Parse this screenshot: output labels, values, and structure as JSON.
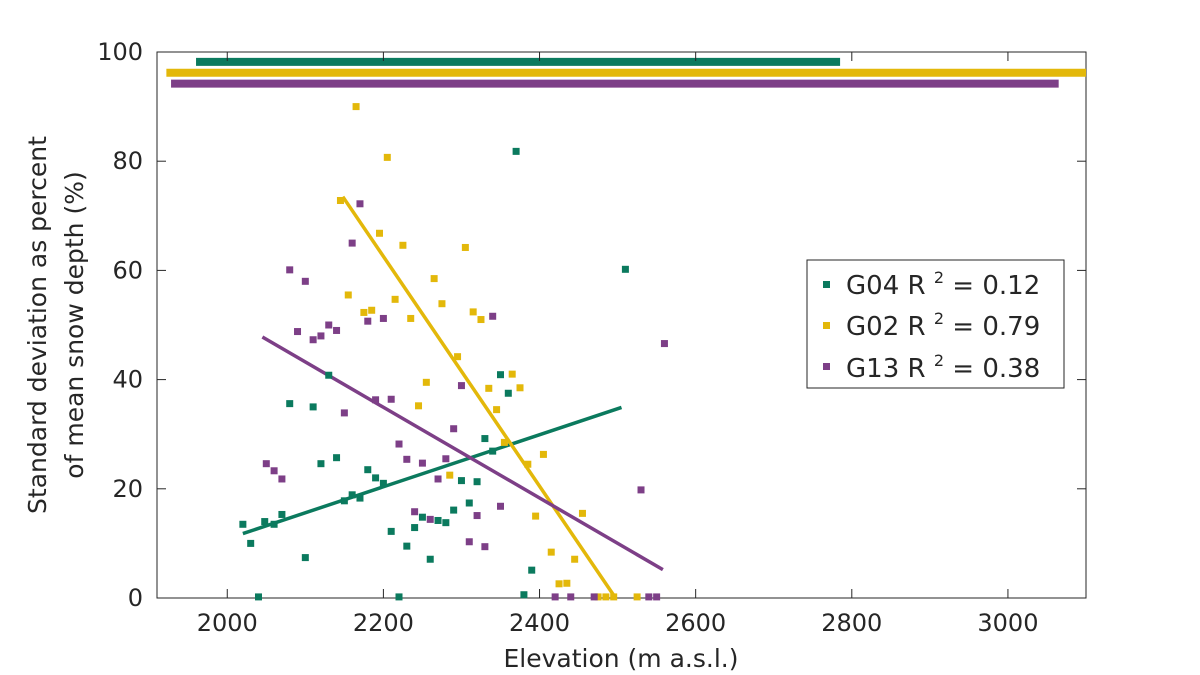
{
  "chart_data": {
    "type": "scatter",
    "title": "",
    "xlabel": "Elevation (m a.s.l.)",
    "ylabel_line1": "Standard deviation as percent",
    "ylabel_line2": "of mean snow depth (%)",
    "xlim": [
      1910,
      3100
    ],
    "ylim": [
      0,
      100
    ],
    "xticks": [
      2000,
      2200,
      2400,
      2600,
      2800,
      3000
    ],
    "yticks": [
      0,
      20,
      40,
      60,
      80,
      100
    ],
    "xtick_labels": [
      "2000",
      "2200",
      "2400",
      "2600",
      "2800",
      "3000"
    ],
    "ytick_labels": [
      "0",
      "20",
      "40",
      "60",
      "80",
      "100"
    ],
    "grid": false,
    "legend_position": "right",
    "series": [
      {
        "name": "G04",
        "r2_label": "R",
        "r2_sup": "2",
        "r2_value": " = 0.12",
        "color": "#0b7a5e",
        "points": [
          [
            2020,
            13.5
          ],
          [
            2030,
            10
          ],
          [
            2040,
            0.2
          ],
          [
            2048,
            14
          ],
          [
            2060,
            13.5
          ],
          [
            2070,
            15.3
          ],
          [
            2080,
            35.6
          ],
          [
            2100,
            7.4
          ],
          [
            2110,
            35
          ],
          [
            2120,
            24.6
          ],
          [
            2130,
            40.8
          ],
          [
            2140,
            25.7
          ],
          [
            2150,
            17.8
          ],
          [
            2160,
            18.9
          ],
          [
            2170,
            18.3
          ],
          [
            2180,
            23.5
          ],
          [
            2190,
            22
          ],
          [
            2200,
            21
          ],
          [
            2210,
            12.2
          ],
          [
            2220,
            0.2
          ],
          [
            2230,
            9.5
          ],
          [
            2240,
            12.9
          ],
          [
            2250,
            14.8
          ],
          [
            2260,
            7.1
          ],
          [
            2270,
            14.2
          ],
          [
            2280,
            13.8
          ],
          [
            2290,
            16.1
          ],
          [
            2300,
            21.5
          ],
          [
            2310,
            17.4
          ],
          [
            2320,
            21.3
          ],
          [
            2330,
            29.2
          ],
          [
            2340,
            26.9
          ],
          [
            2350,
            40.9
          ],
          [
            2360,
            37.5
          ],
          [
            2370,
            81.8
          ],
          [
            2380,
            0.6
          ],
          [
            2390,
            5.1
          ],
          [
            2510,
            60.2
          ]
        ],
        "fit": [
          [
            2020,
            11.8
          ],
          [
            2505,
            34.9
          ]
        ],
        "range": [
          1960,
          2785
        ],
        "range_y": 98.2
      },
      {
        "name": "G02",
        "r2_label": "R",
        "r2_sup": "2",
        "r2_value": " = 0.79",
        "color": "#e3b80a",
        "points": [
          [
            2145,
            72.8
          ],
          [
            2155,
            55.5
          ],
          [
            2165,
            90
          ],
          [
            2175,
            52.3
          ],
          [
            2185,
            52.7
          ],
          [
            2195,
            66.8
          ],
          [
            2205,
            80.7
          ],
          [
            2215,
            54.7
          ],
          [
            2225,
            64.6
          ],
          [
            2235,
            51.2
          ],
          [
            2245,
            35.2
          ],
          [
            2255,
            39.5
          ],
          [
            2265,
            58.5
          ],
          [
            2275,
            53.9
          ],
          [
            2285,
            22.5
          ],
          [
            2295,
            44.2
          ],
          [
            2305,
            64.2
          ],
          [
            2315,
            52.4
          ],
          [
            2325,
            51
          ],
          [
            2335,
            38.4
          ],
          [
            2345,
            34.5
          ],
          [
            2355,
            28.5
          ],
          [
            2365,
            41
          ],
          [
            2375,
            38.5
          ],
          [
            2385,
            24.5
          ],
          [
            2395,
            15
          ],
          [
            2405,
            26.3
          ],
          [
            2415,
            8.4
          ],
          [
            2425,
            2.6
          ],
          [
            2435,
            2.7
          ],
          [
            2445,
            7.1
          ],
          [
            2455,
            15.5
          ],
          [
            2475,
            0.2
          ],
          [
            2485,
            0.2
          ],
          [
            2495,
            0.2
          ],
          [
            2525,
            0.2
          ]
        ],
        "fit": [
          [
            2148,
            73.5
          ],
          [
            2495,
            0.5
          ]
        ],
        "range": [
          1922,
          3100
        ],
        "range_y": 96.2
      },
      {
        "name": "G13",
        "r2_label": "R",
        "r2_sup": "2",
        "r2_value": " = 0.38",
        "color": "#7d3f87",
        "points": [
          [
            2050,
            24.6
          ],
          [
            2060,
            23.3
          ],
          [
            2070,
            21.8
          ],
          [
            2080,
            60.1
          ],
          [
            2090,
            48.8
          ],
          [
            2100,
            58
          ],
          [
            2110,
            47.3
          ],
          [
            2120,
            48
          ],
          [
            2130,
            50
          ],
          [
            2140,
            49
          ],
          [
            2150,
            33.9
          ],
          [
            2160,
            65
          ],
          [
            2170,
            72.2
          ],
          [
            2180,
            50.7
          ],
          [
            2190,
            36.3
          ],
          [
            2200,
            51.2
          ],
          [
            2210,
            36.4
          ],
          [
            2220,
            28.2
          ],
          [
            2230,
            25.4
          ],
          [
            2240,
            15.8
          ],
          [
            2250,
            24.7
          ],
          [
            2260,
            14.4
          ],
          [
            2270,
            21.8
          ],
          [
            2280,
            25.5
          ],
          [
            2290,
            31
          ],
          [
            2300,
            38.9
          ],
          [
            2310,
            10.3
          ],
          [
            2320,
            15.1
          ],
          [
            2330,
            9.4
          ],
          [
            2340,
            51.6
          ],
          [
            2350,
            16.8
          ],
          [
            2420,
            0.2
          ],
          [
            2440,
            0.2
          ],
          [
            2470,
            0.2
          ],
          [
            2530,
            19.8
          ],
          [
            2540,
            0.2
          ],
          [
            2550,
            0.2
          ],
          [
            2560,
            46.6
          ]
        ],
        "fit": [
          [
            2045,
            47.8
          ],
          [
            2558,
            5.2
          ]
        ],
        "range": [
          1928,
          3065
        ],
        "range_y": 94.2
      }
    ]
  }
}
